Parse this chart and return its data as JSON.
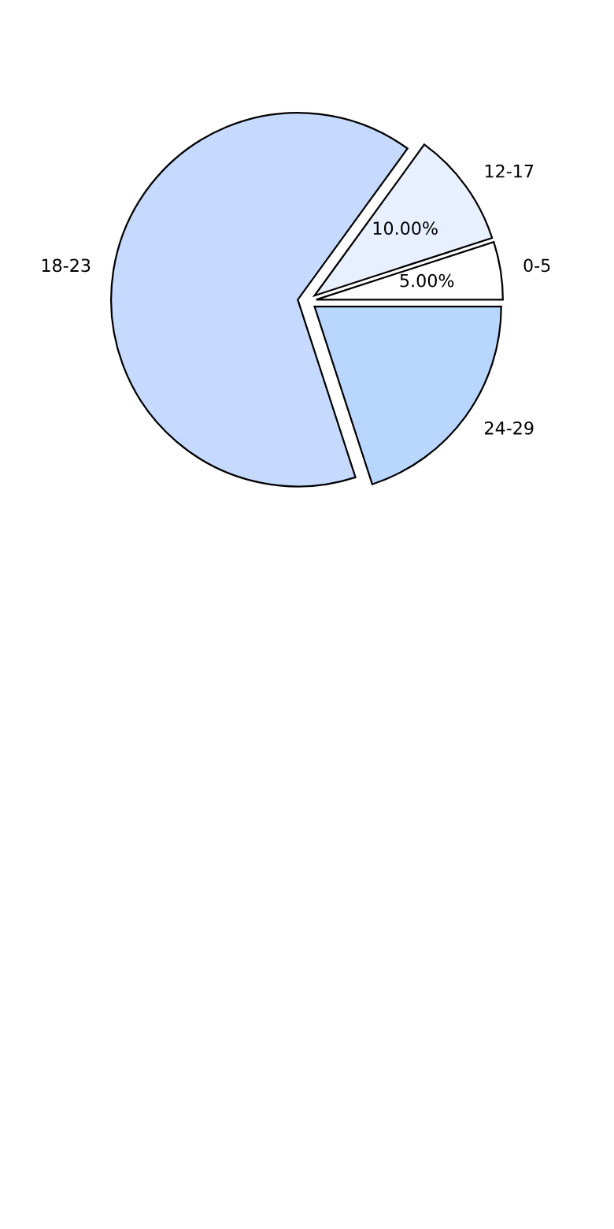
{
  "chart_data": {
    "type": "pie",
    "categories": [
      "0-5",
      "12-17",
      "18-23",
      "24-29"
    ],
    "values": [
      5,
      10,
      65,
      20
    ],
    "colors": [
      "#ffffff",
      "#e8f0ff",
      "#c6d9ff",
      "#b8d6ff"
    ],
    "value_labels": [
      "5.00%",
      "10.00%",
      null,
      null
    ]
  }
}
